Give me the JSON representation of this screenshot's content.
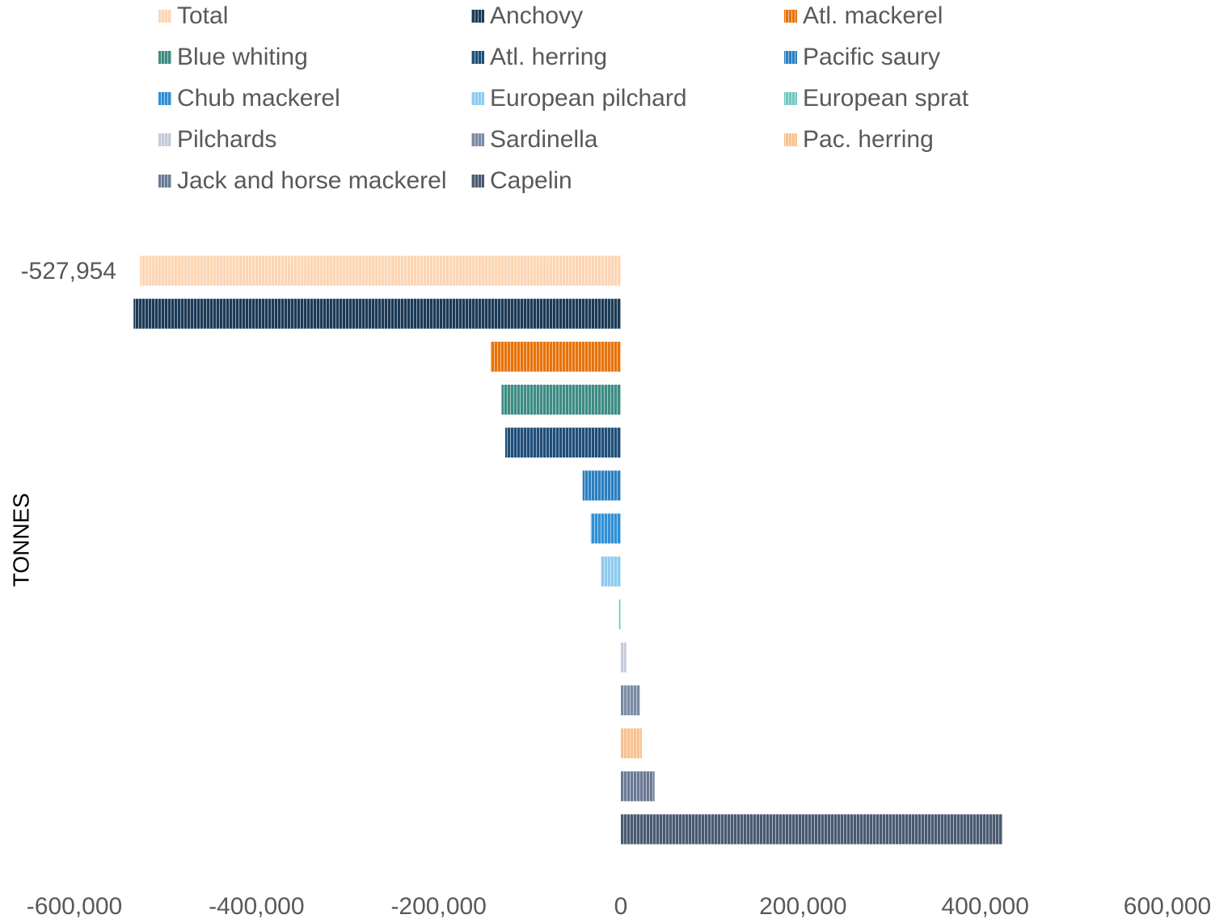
{
  "chart_data": {
    "type": "bar",
    "orientation": "horizontal",
    "y_label": "TONNES",
    "xlim": [
      -600000,
      600000
    ],
    "xticks": [
      {
        "value": -600000,
        "label": "-600,000"
      },
      {
        "value": -400000,
        "label": "-400,000"
      },
      {
        "value": -200000,
        "label": "-200,000"
      },
      0,
      {
        "value": 200000,
        "label": "200,000"
      },
      {
        "value": 400000,
        "label": "400,000"
      },
      {
        "value": 600000,
        "label": "600,000"
      }
    ],
    "grid": false,
    "legend": "top",
    "series": [
      {
        "name": "Total",
        "color": "#fdd5b4",
        "values": [
          -527954
        ],
        "value_labels": [
          "-527,954"
        ]
      },
      {
        "name": "Anchovy",
        "color": "#1b3a57",
        "values": [
          -535000
        ]
      },
      {
        "name": "Atl. mackerel",
        "color": "#e8730c",
        "values": [
          -143000
        ]
      },
      {
        "name": "Blue whiting",
        "color": "#3d8c84",
        "values": [
          -131000
        ]
      },
      {
        "name": "Atl. herring",
        "color": "#1f4e79",
        "values": [
          -127000
        ]
      },
      {
        "name": "Pacific saury",
        "color": "#2a7fc0",
        "values": [
          -42000
        ]
      },
      {
        "name": "Chub mackerel",
        "color": "#2e8fd6",
        "values": [
          -33000
        ]
      },
      {
        "name": "European pilchard",
        "color": "#8ccbef",
        "values": [
          -22000
        ]
      },
      {
        "name": "European sprat",
        "color": "#6ec7c0",
        "values": [
          -2000
        ]
      },
      {
        "name": "Pilchards",
        "color": "#c4ccd8",
        "values": [
          6000
        ]
      },
      {
        "name": "Sardinella",
        "color": "#7a8aa5",
        "values": [
          21000
        ]
      },
      {
        "name": "Pac. herring",
        "color": "#f9c08e",
        "values": [
          23000
        ]
      },
      {
        "name": "Jack and horse mackerel",
        "color": "#6a7a95",
        "values": [
          37000
        ]
      },
      {
        "name": "Capelin",
        "color": "#4a5a72",
        "values": [
          419000
        ]
      }
    ]
  }
}
